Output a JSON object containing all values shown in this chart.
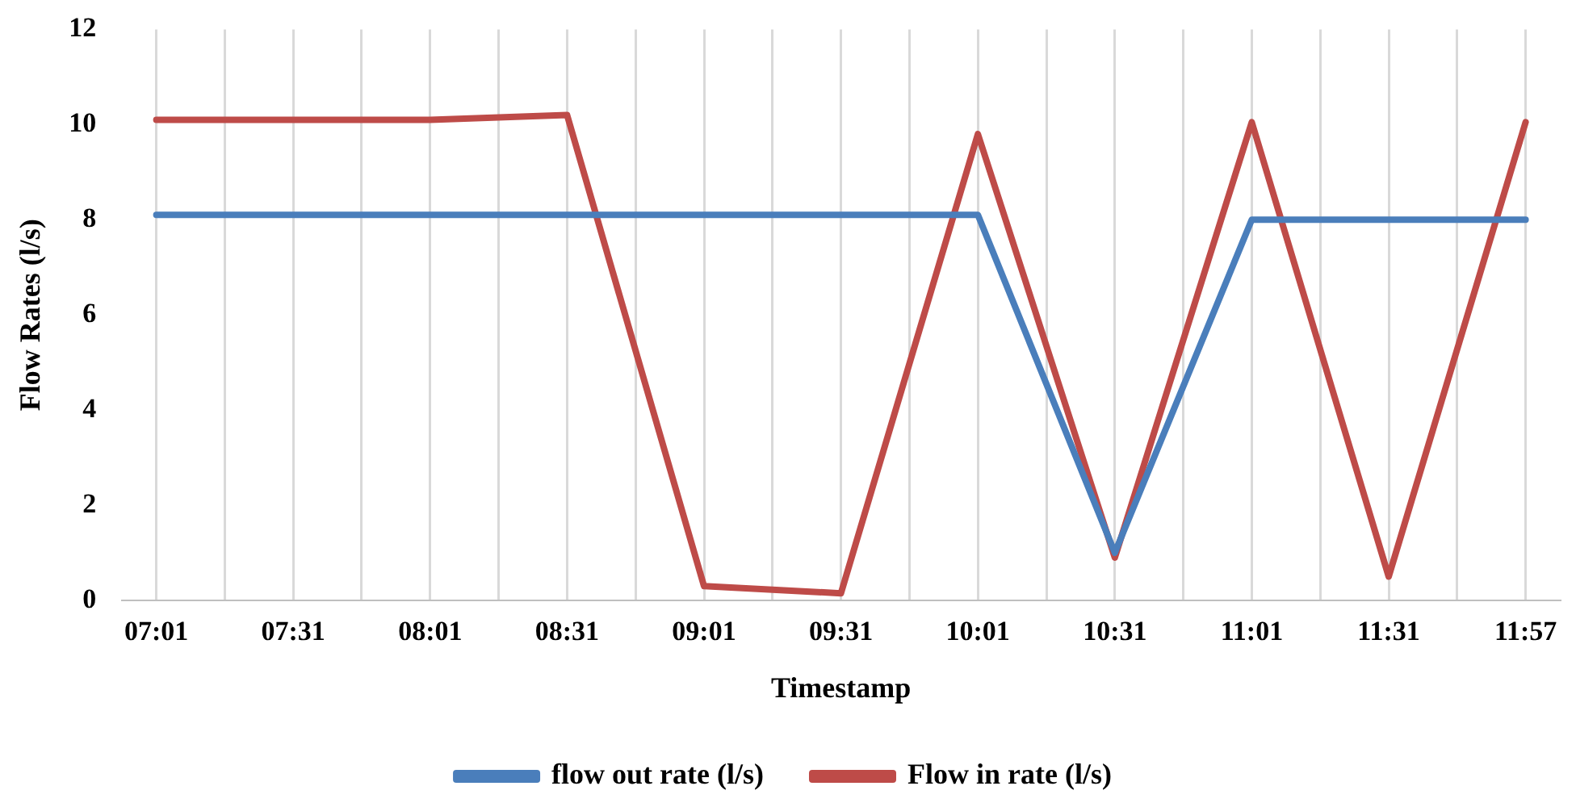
{
  "chart_data": {
    "type": "line",
    "xlabel": "Timestamp",
    "ylabel": "Flow Rates (l/s)",
    "categories": [
      "07:01",
      null,
      "07:31",
      null,
      "08:01",
      null,
      "08:31",
      null,
      "09:01",
      null,
      "09:31",
      null,
      "10:01",
      null,
      "10:31",
      null,
      "11:01",
      null,
      "11:31",
      null,
      "11:57"
    ],
    "series": [
      {
        "name": "flow out rate (l/s)",
        "color": "#4a7ebb",
        "values": [
          8.1,
          null,
          8.1,
          null,
          8.1,
          null,
          8.1,
          null,
          8.1,
          null,
          8.1,
          null,
          8.1,
          null,
          1.0,
          null,
          8.0,
          null,
          8.0,
          null,
          8.0
        ]
      },
      {
        "name": "Flow in rate (l/s)",
        "color": "#be4b48",
        "values": [
          10.1,
          null,
          10.1,
          null,
          10.1,
          null,
          10.2,
          null,
          0.3,
          null,
          0.15,
          null,
          9.8,
          null,
          0.9,
          null,
          10.05,
          null,
          0.5,
          null,
          10.05
        ]
      }
    ],
    "ylim": [
      0,
      12
    ],
    "yticks": [
      0,
      2,
      4,
      6,
      8,
      10,
      12
    ],
    "grid": "x",
    "legend": "bottom",
    "marker": "none",
    "line_style": "solid"
  }
}
